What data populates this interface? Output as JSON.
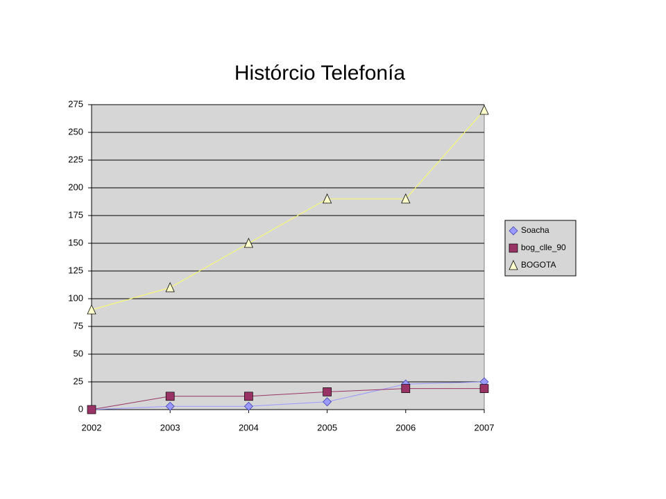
{
  "chart_data": {
    "type": "line",
    "title": "Histórcio Telefonía",
    "categories": [
      "2002",
      "2003",
      "2004",
      "2005",
      "2006",
      "2007"
    ],
    "series": [
      {
        "name": "Soacha",
        "color": "#9999ff",
        "marker": "diamond",
        "values": [
          0,
          3,
          3,
          7,
          23,
          25
        ]
      },
      {
        "name": "bog_clle_90",
        "color": "#993366",
        "marker": "square",
        "values": [
          0,
          12,
          12,
          16,
          19,
          19
        ]
      },
      {
        "name": "BOGOTA",
        "color": "#ffffcc",
        "marker": "triangle",
        "values": [
          90,
          110,
          150,
          190,
          190,
          270
        ]
      }
    ],
    "ylim": [
      0,
      275
    ],
    "yticks": [
      0,
      25,
      50,
      75,
      100,
      125,
      150,
      175,
      200,
      225,
      250,
      275
    ],
    "grid": true,
    "legend": "right"
  }
}
